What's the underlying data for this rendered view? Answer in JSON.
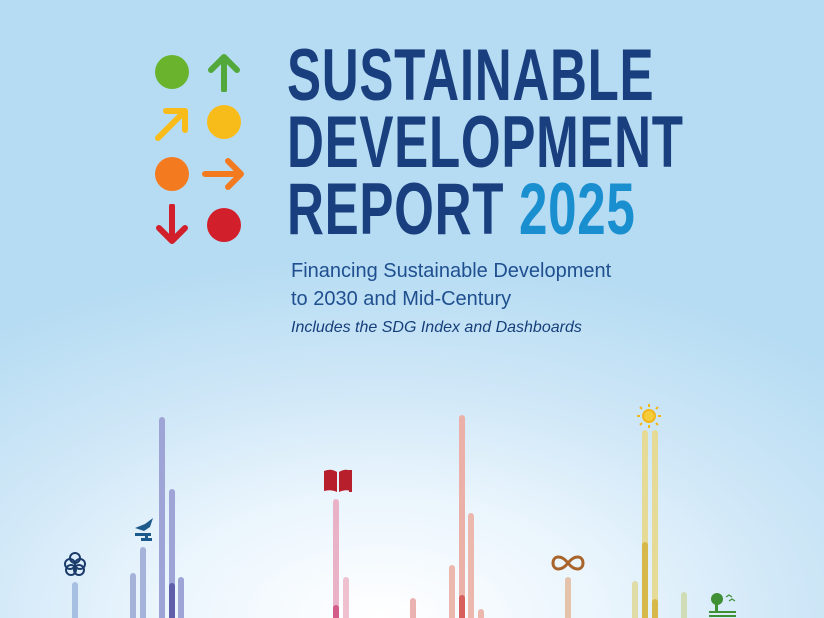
{
  "cover": {
    "title_line1": "SUSTAINABLE",
    "title_line2": "DEVELOPMENT",
    "title_line3": "REPORT",
    "title_year": "2025",
    "subtitle_line1": "Financing Sustainable Development",
    "subtitle_line2": "to 2030 and Mid-Century",
    "note": "Includes the SDG Index and Dashboards"
  },
  "logo": {
    "colors": {
      "green": "#6ab42d",
      "yellow": "#f8bc1a",
      "orange": "#f47a20",
      "red": "#d21f2c"
    },
    "icons": [
      "green-circle-icon",
      "green-up-arrow-icon",
      "yellow-diagonal-arrow-icon",
      "yellow-circle-icon",
      "orange-circle-icon",
      "orange-right-arrow-icon",
      "red-down-arrow-icon",
      "red-circle-icon"
    ]
  },
  "decoration": {
    "icons": [
      "partnership-rings-icon",
      "peace-dove-icon",
      "education-book-icon",
      "infinity-icon",
      "sun-energy-icon",
      "life-on-land-tree-icon"
    ]
  },
  "colors": {
    "title": "#1a3f7f",
    "year": "#1a8fd0",
    "subtitle": "#1f4f8f"
  }
}
